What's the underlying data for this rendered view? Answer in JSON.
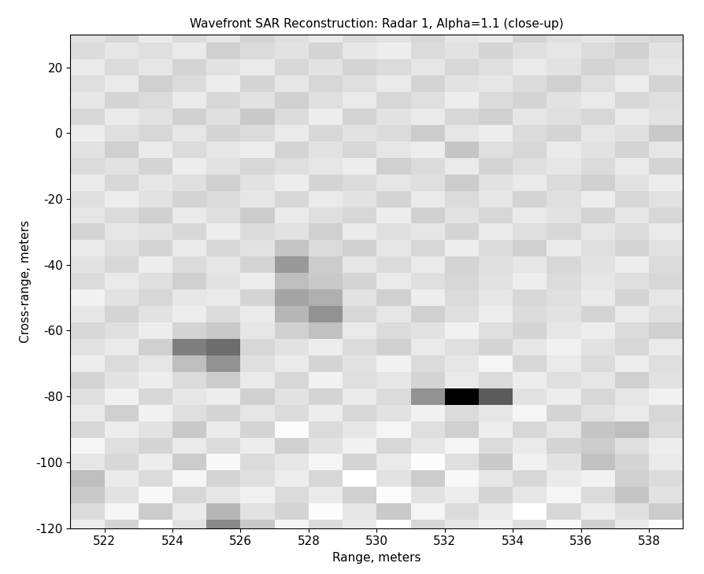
{
  "chart_data": {
    "type": "heatmap",
    "title": "Wavefront SAR Reconstruction: Radar 1, Alpha=1.1 (close-up)",
    "x_label": "Range, meters",
    "y_label": "Cross-range, meters",
    "x": [
      521.5,
      522.5,
      523.5,
      524.5,
      525.5,
      526.5,
      527.5,
      528.5,
      529.5,
      530.5,
      531.5,
      532.5,
      533.5,
      534.5,
      535.5,
      536.5,
      537.5,
      538.5
    ],
    "y": [
      -120,
      -115,
      -110,
      -105,
      -100,
      -95,
      -90,
      -85,
      -80,
      -75,
      -70,
      -65,
      -60,
      -55,
      -50,
      -45,
      -40,
      -35,
      -30,
      -25,
      -20,
      -15,
      -10,
      -5,
      0,
      5,
      10,
      15,
      20,
      25,
      30
    ],
    "cells": [
      [
        0.35,
        0.42,
        0.3,
        0.38,
        0.62,
        0.45,
        0.33,
        0.4,
        0.36,
        0.3,
        0.41,
        0.37,
        0.34,
        0.39,
        0.32,
        0.43,
        0.36,
        0.31
      ],
      [
        0.4,
        0.33,
        0.44,
        0.36,
        0.5,
        0.38,
        0.42,
        0.31,
        0.37,
        0.45,
        0.33,
        0.4,
        0.36,
        0.3,
        0.41,
        0.35,
        0.39,
        0.44
      ],
      [
        0.45,
        0.38,
        0.32,
        0.41,
        0.37,
        0.34,
        0.4,
        0.36,
        0.43,
        0.31,
        0.38,
        0.35,
        0.42,
        0.37,
        0.33,
        0.4,
        0.46,
        0.38
      ],
      [
        0.48,
        0.36,
        0.4,
        0.33,
        0.42,
        0.39,
        0.35,
        0.41,
        0.3,
        0.38,
        0.44,
        0.32,
        0.37,
        0.41,
        0.36,
        0.34,
        0.43,
        0.4
      ],
      [
        0.37,
        0.41,
        0.35,
        0.44,
        0.32,
        0.4,
        0.37,
        0.33,
        0.42,
        0.36,
        0.31,
        0.39,
        0.45,
        0.34,
        0.38,
        0.47,
        0.42,
        0.36
      ],
      [
        0.33,
        0.39,
        0.42,
        0.36,
        0.4,
        0.35,
        0.43,
        0.38,
        0.34,
        0.41,
        0.37,
        0.33,
        0.4,
        0.36,
        0.42,
        0.44,
        0.39,
        0.35
      ],
      [
        0.41,
        0.35,
        0.38,
        0.45,
        0.36,
        0.42,
        0.31,
        0.4,
        0.37,
        0.33,
        0.39,
        0.43,
        0.35,
        0.41,
        0.37,
        0.46,
        0.48,
        0.4
      ],
      [
        0.36,
        0.43,
        0.34,
        0.39,
        0.42,
        0.37,
        0.4,
        0.35,
        0.41,
        0.38,
        0.34,
        0.4,
        0.37,
        0.33,
        0.42,
        0.38,
        0.36,
        0.41
      ],
      [
        0.39,
        0.34,
        0.41,
        0.37,
        0.35,
        0.43,
        0.38,
        0.42,
        0.36,
        0.4,
        0.6,
        1.0,
        0.75,
        0.38,
        0.35,
        0.41,
        0.37,
        0.34
      ],
      [
        0.42,
        0.38,
        0.35,
        0.4,
        0.44,
        0.36,
        0.41,
        0.34,
        0.39,
        0.37,
        0.42,
        0.36,
        0.4,
        0.35,
        0.39,
        0.37,
        0.43,
        0.38
      ],
      [
        0.35,
        0.4,
        0.37,
        0.48,
        0.6,
        0.39,
        0.36,
        0.42,
        0.38,
        0.34,
        0.4,
        0.37,
        0.33,
        0.41,
        0.36,
        0.4,
        0.35,
        0.39
      ],
      [
        0.38,
        0.36,
        0.43,
        0.65,
        0.7,
        0.41,
        0.38,
        0.35,
        0.4,
        0.43,
        0.36,
        0.39,
        0.42,
        0.37,
        0.34,
        0.38,
        0.41,
        0.36
      ],
      [
        0.41,
        0.39,
        0.35,
        0.42,
        0.45,
        0.37,
        0.43,
        0.47,
        0.36,
        0.4,
        0.38,
        0.34,
        0.39,
        0.42,
        0.37,
        0.35,
        0.4,
        0.43
      ],
      [
        0.37,
        0.42,
        0.38,
        0.35,
        0.4,
        0.36,
        0.5,
        0.6,
        0.41,
        0.37,
        0.43,
        0.39,
        0.35,
        0.4,
        0.38,
        0.42,
        0.36,
        0.39
      ],
      [
        0.34,
        0.38,
        0.41,
        0.37,
        0.36,
        0.42,
        0.55,
        0.52,
        0.38,
        0.43,
        0.35,
        0.4,
        0.37,
        0.41,
        0.39,
        0.36,
        0.42,
        0.37
      ],
      [
        0.4,
        0.36,
        0.39,
        0.43,
        0.38,
        0.35,
        0.48,
        0.45,
        0.42,
        0.36,
        0.39,
        0.41,
        0.38,
        0.35,
        0.4,
        0.37,
        0.39,
        0.41
      ],
      [
        0.38,
        0.41,
        0.35,
        0.4,
        0.37,
        0.42,
        0.58,
        0.44,
        0.37,
        0.4,
        0.36,
        0.42,
        0.39,
        0.37,
        0.41,
        0.38,
        0.35,
        0.4
      ],
      [
        0.36,
        0.39,
        0.42,
        0.36,
        0.41,
        0.38,
        0.46,
        0.4,
        0.43,
        0.37,
        0.41,
        0.35,
        0.4,
        0.43,
        0.36,
        0.39,
        0.42,
        0.38
      ],
      [
        0.42,
        0.37,
        0.38,
        0.41,
        0.35,
        0.4,
        0.38,
        0.43,
        0.36,
        0.39,
        0.37,
        0.42,
        0.36,
        0.39,
        0.41,
        0.37,
        0.4,
        0.36
      ],
      [
        0.37,
        0.4,
        0.43,
        0.36,
        0.39,
        0.44,
        0.36,
        0.39,
        0.41,
        0.35,
        0.43,
        0.38,
        0.41,
        0.36,
        0.38,
        0.42,
        0.37,
        0.41
      ],
      [
        0.39,
        0.35,
        0.38,
        0.42,
        0.4,
        0.37,
        0.41,
        0.36,
        0.38,
        0.42,
        0.36,
        0.4,
        0.37,
        0.42,
        0.39,
        0.35,
        0.41,
        0.38
      ],
      [
        0.36,
        0.41,
        0.37,
        0.39,
        0.43,
        0.38,
        0.35,
        0.42,
        0.4,
        0.37,
        0.39,
        0.44,
        0.38,
        0.36,
        0.4,
        0.43,
        0.38,
        0.35
      ],
      [
        0.4,
        0.38,
        0.42,
        0.35,
        0.38,
        0.41,
        0.39,
        0.37,
        0.35,
        0.43,
        0.4,
        0.36,
        0.42,
        0.39,
        0.37,
        0.4,
        0.36,
        0.42
      ],
      [
        0.38,
        0.43,
        0.36,
        0.4,
        0.37,
        0.35,
        0.42,
        0.38,
        0.41,
        0.37,
        0.35,
        0.46,
        0.39,
        0.41,
        0.36,
        0.38,
        0.42,
        0.37
      ],
      [
        0.35,
        0.39,
        0.41,
        0.37,
        0.42,
        0.4,
        0.36,
        0.41,
        0.38,
        0.4,
        0.44,
        0.37,
        0.35,
        0.4,
        0.42,
        0.37,
        0.39,
        0.45
      ],
      [
        0.41,
        0.36,
        0.38,
        0.43,
        0.39,
        0.45,
        0.4,
        0.35,
        0.42,
        0.38,
        0.36,
        0.41,
        0.43,
        0.37,
        0.39,
        0.41,
        0.36,
        0.38
      ],
      [
        0.37,
        0.42,
        0.4,
        0.36,
        0.41,
        0.38,
        0.43,
        0.39,
        0.36,
        0.41,
        0.39,
        0.35,
        0.4,
        0.42,
        0.38,
        0.36,
        0.41,
        0.39
      ],
      [
        0.39,
        0.36,
        0.43,
        0.4,
        0.35,
        0.42,
        0.37,
        0.41,
        0.39,
        0.36,
        0.42,
        0.38,
        0.37,
        0.4,
        0.43,
        0.39,
        0.35,
        0.42
      ],
      [
        0.36,
        0.4,
        0.37,
        0.42,
        0.38,
        0.36,
        0.41,
        0.38,
        0.42,
        0.4,
        0.37,
        0.41,
        0.39,
        0.36,
        0.38,
        0.42,
        0.4,
        0.37
      ],
      [
        0.4,
        0.37,
        0.39,
        0.36,
        0.43,
        0.4,
        0.38,
        0.42,
        0.37,
        0.35,
        0.4,
        0.38,
        0.42,
        0.39,
        0.37,
        0.4,
        0.43,
        0.38
      ],
      [
        0.38,
        0.41,
        0.36,
        0.4,
        0.37,
        0.42,
        0.39,
        0.36,
        0.4,
        0.38,
        0.41,
        0.37,
        0.36,
        0.42,
        0.39,
        0.37,
        0.4,
        0.41
      ]
    ],
    "xlim": [
      521,
      539
    ],
    "ylim": [
      -120,
      30
    ],
    "xticks": [
      522,
      524,
      526,
      528,
      530,
      532,
      534,
      536,
      538
    ],
    "yticks": [
      -120,
      -100,
      -80,
      -60,
      -40,
      -20,
      0,
      20
    ]
  }
}
